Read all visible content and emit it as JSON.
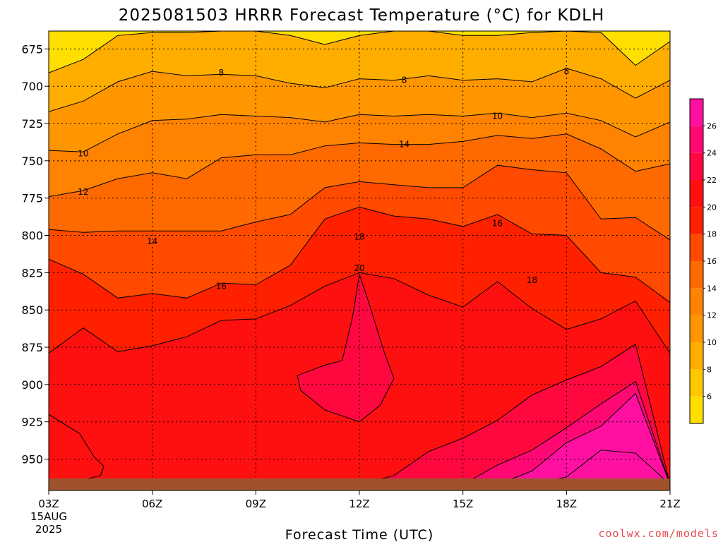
{
  "chart_data": {
    "type": "heatmap",
    "title": "2025081503 HRRR Forecast Temperature (°C) for KDLH",
    "xlabel": "Forecast Time (UTC)",
    "ylabel": "",
    "x_ticks": [
      "03Z",
      "06Z",
      "09Z",
      "12Z",
      "15Z",
      "18Z",
      "21Z"
    ],
    "x_first_tick_sub": [
      "15AUG",
      "2025"
    ],
    "x_hours": [
      3,
      21
    ],
    "y_ticks": [
      675,
      700,
      725,
      750,
      775,
      800,
      825,
      850,
      875,
      900,
      925,
      950
    ],
    "y_range": [
      663,
      963
    ],
    "y_axis": "pressure (hPa), increasing downward",
    "grid": true,
    "colorbar": {
      "ticks": [
        6,
        8,
        10,
        12,
        14,
        16,
        18,
        20,
        22,
        24,
        26
      ],
      "min": 4,
      "max": 28,
      "colors": [
        "#ffdf00",
        "#ffc800",
        "#ffae00",
        "#ff9600",
        "#ff8200",
        "#ff6a00",
        "#ff4a00",
        "#ff2000",
        "#ff1010",
        "#ff0840",
        "#ff0874",
        "#ff10a0"
      ]
    },
    "contours": [
      {
        "level": 8,
        "pts": [
          [
            3,
            691
          ],
          [
            4,
            682
          ],
          [
            5,
            666
          ],
          [
            6,
            664
          ],
          [
            7,
            664
          ],
          [
            8,
            663
          ],
          [
            9,
            663
          ],
          [
            10,
            666
          ],
          [
            11,
            672
          ],
          [
            12,
            666
          ],
          [
            13,
            663
          ],
          [
            14,
            663
          ],
          [
            15,
            666
          ],
          [
            16,
            666
          ],
          [
            17,
            664
          ],
          [
            18,
            663
          ],
          [
            19,
            664
          ],
          [
            20,
            686
          ],
          [
            21,
            670
          ]
        ]
      },
      {
        "level": 10,
        "pts": [
          [
            3,
            717
          ],
          [
            4,
            710
          ],
          [
            5,
            697
          ],
          [
            6,
            690
          ],
          [
            7,
            693
          ],
          [
            8,
            692
          ],
          [
            9,
            693
          ],
          [
            10,
            698
          ],
          [
            11,
            701
          ],
          [
            12,
            695
          ],
          [
            13,
            696
          ],
          [
            14,
            693
          ],
          [
            15,
            696
          ],
          [
            16,
            695
          ],
          [
            17,
            697
          ],
          [
            18,
            688
          ],
          [
            19,
            695
          ],
          [
            20,
            708
          ],
          [
            21,
            696
          ]
        ]
      },
      {
        "level": 12,
        "pts": [
          [
            3,
            743
          ],
          [
            4,
            744
          ],
          [
            5,
            732
          ],
          [
            6,
            723
          ],
          [
            7,
            722
          ],
          [
            8,
            719
          ],
          [
            9,
            720
          ],
          [
            10,
            721
          ],
          [
            11,
            724
          ],
          [
            12,
            719
          ],
          [
            13,
            720
          ],
          [
            14,
            719
          ],
          [
            15,
            720
          ],
          [
            16,
            718
          ],
          [
            17,
            721
          ],
          [
            18,
            718
          ],
          [
            19,
            723
          ],
          [
            20,
            734
          ],
          [
            21,
            724
          ]
        ]
      },
      {
        "level": 14,
        "pts": [
          [
            3,
            774
          ],
          [
            4,
            770
          ],
          [
            5,
            762
          ],
          [
            6,
            758
          ],
          [
            7,
            762
          ],
          [
            8,
            748
          ],
          [
            9,
            746
          ],
          [
            10,
            746
          ],
          [
            11,
            740
          ],
          [
            12,
            738
          ],
          [
            13,
            739
          ],
          [
            14,
            739
          ],
          [
            15,
            737
          ],
          [
            16,
            733
          ],
          [
            17,
            735
          ],
          [
            18,
            732
          ],
          [
            19,
            742
          ],
          [
            20,
            757
          ],
          [
            21,
            752
          ]
        ]
      },
      {
        "level": 16,
        "pts": [
          [
            3,
            796
          ],
          [
            4,
            798
          ],
          [
            5,
            797
          ],
          [
            6,
            797
          ],
          [
            7,
            797
          ],
          [
            8,
            797
          ],
          [
            9,
            791
          ],
          [
            10,
            786
          ],
          [
            11,
            768
          ],
          [
            12,
            764
          ],
          [
            13,
            766
          ],
          [
            14,
            768
          ],
          [
            15,
            768
          ],
          [
            16,
            753
          ],
          [
            17,
            756
          ],
          [
            18,
            758
          ],
          [
            19,
            789
          ],
          [
            20,
            788
          ],
          [
            21,
            803
          ]
        ]
      },
      {
        "level": 18,
        "pts": [
          [
            3,
            816
          ],
          [
            4,
            826
          ],
          [
            5,
            842
          ],
          [
            6,
            839
          ],
          [
            7,
            842
          ],
          [
            8,
            832
          ],
          [
            9,
            833
          ],
          [
            10,
            820
          ],
          [
            11,
            789
          ],
          [
            12,
            781
          ],
          [
            13,
            787
          ],
          [
            14,
            789
          ],
          [
            15,
            794
          ],
          [
            16,
            786
          ],
          [
            17,
            799
          ],
          [
            18,
            800
          ],
          [
            19,
            825
          ],
          [
            20,
            828
          ],
          [
            21,
            845
          ]
        ]
      },
      {
        "level": 20,
        "pts": [
          [
            3,
            879
          ],
          [
            4,
            862
          ],
          [
            5,
            878
          ],
          [
            6,
            874
          ],
          [
            7,
            868
          ],
          [
            8,
            857
          ],
          [
            9,
            856
          ],
          [
            10,
            847
          ],
          [
            11,
            834
          ],
          [
            12,
            825
          ],
          [
            13,
            829
          ],
          [
            14,
            840
          ],
          [
            15,
            848
          ],
          [
            16,
            831
          ],
          [
            17,
            849
          ],
          [
            18,
            863
          ],
          [
            19,
            856
          ],
          [
            20,
            844
          ],
          [
            21,
            879
          ]
        ]
      },
      {
        "level": 22,
        "pts": [
          [
            3,
            967
          ],
          [
            4,
            967
          ],
          [
            5,
            967
          ],
          [
            6,
            967
          ],
          [
            7,
            967
          ],
          [
            8,
            967
          ],
          [
            9,
            967
          ],
          [
            10,
            967
          ],
          [
            11,
            967
          ],
          [
            12,
            967
          ],
          [
            13,
            961
          ],
          [
            14,
            945
          ],
          [
            15,
            936
          ],
          [
            16,
            924
          ],
          [
            17,
            907
          ],
          [
            18,
            897
          ],
          [
            19,
            888
          ],
          [
            20,
            873
          ],
          [
            21,
            967
          ]
        ]
      },
      {
        "level": 24,
        "pts": [
          [
            15,
            967
          ],
          [
            16,
            954
          ],
          [
            17,
            944
          ],
          [
            18,
            929
          ],
          [
            19,
            913
          ],
          [
            20,
            898
          ],
          [
            21,
            967
          ]
        ]
      },
      {
        "level": 26,
        "pts": [
          [
            16,
            967
          ],
          [
            17,
            958
          ],
          [
            18,
            939
          ],
          [
            19,
            928
          ],
          [
            20,
            906
          ],
          [
            21,
            967
          ]
        ]
      },
      {
        "level": 27,
        "pts": [
          [
            17,
            967
          ],
          [
            18,
            962
          ],
          [
            19,
            944
          ],
          [
            20,
            946
          ],
          [
            21,
            967
          ]
        ]
      }
    ],
    "closed_contours": [
      {
        "level": 20,
        "pts": [
          [
            3,
            920
          ],
          [
            3.9,
            933
          ],
          [
            4.3,
            948
          ],
          [
            4.6,
            955
          ],
          [
            4.5,
            961
          ],
          [
            3.5,
            967
          ],
          [
            3,
            967
          ]
        ]
      },
      {
        "level": 22,
        "pts": [
          [
            10.2,
            894
          ],
          [
            11.0,
            887
          ],
          [
            11.5,
            884
          ],
          [
            11.8,
            855
          ],
          [
            12.0,
            826
          ],
          [
            12.3,
            847
          ],
          [
            12.7,
            877
          ],
          [
            13.0,
            896
          ],
          [
            12.6,
            914
          ],
          [
            12.0,
            925
          ],
          [
            11.0,
            917
          ],
          [
            10.3,
            904
          ]
        ]
      }
    ],
    "labels": [
      {
        "text": "8",
        "x": 8.0,
        "y": 691
      },
      {
        "text": "8",
        "x": 13.3,
        "y": 696
      },
      {
        "text": "8",
        "x": 18.0,
        "y": 690
      },
      {
        "text": "10",
        "x": 16.0,
        "y": 720
      },
      {
        "text": "10",
        "x": 4.0,
        "y": 745
      },
      {
        "text": "12",
        "x": 4.0,
        "y": 771
      },
      {
        "text": "14",
        "x": 13.3,
        "y": 739
      },
      {
        "text": "14",
        "x": 6.0,
        "y": 804
      },
      {
        "text": "16",
        "x": 16.0,
        "y": 792
      },
      {
        "text": "16",
        "x": 8.0,
        "y": 834
      },
      {
        "text": "18",
        "x": 12.0,
        "y": 801
      },
      {
        "text": "18",
        "x": 17.0,
        "y": 830
      },
      {
        "text": "20",
        "x": 12.0,
        "y": 822
      }
    ],
    "terrain_below": 963
  },
  "credit": "coolwx.com/models"
}
